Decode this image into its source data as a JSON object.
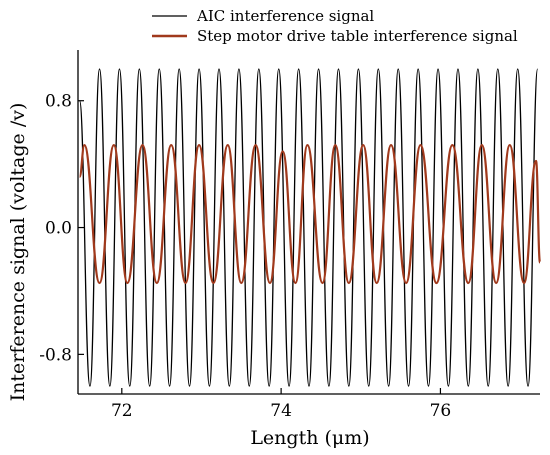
{
  "chart_data": {
    "type": "line",
    "xlabel": "Length  (μm)",
    "ylabel": "Interference signal  (voltage /v)",
    "xlim": [
      71.45,
      77.25
    ],
    "ylim": [
      -1.05,
      1.12
    ],
    "x_ticks": [
      72,
      74,
      76
    ],
    "x_tick_labels": [
      "72",
      "74",
      "76"
    ],
    "y_ticks": [
      0.8,
      0.0,
      -0.8
    ],
    "y_tick_labels": [
      "0.8",
      "0.0",
      "-0.8"
    ],
    "grid": false,
    "legend_position": "top",
    "series": [
      {
        "name": "AIC interference signal",
        "color": "#000000",
        "x": [
          71.47,
          71.6,
          71.72,
          71.85,
          71.97,
          72.1,
          72.22,
          72.35,
          72.47,
          72.6,
          72.72,
          72.85,
          72.97,
          73.1,
          73.22,
          73.35,
          73.47,
          73.6,
          73.72,
          73.85,
          73.97,
          74.1,
          74.22,
          74.35,
          74.47,
          74.6,
          74.72,
          74.85,
          74.97,
          75.1,
          75.22,
          75.35,
          75.47,
          75.6,
          75.72,
          75.85,
          75.97,
          76.1,
          76.22,
          76.35,
          76.47,
          76.6,
          76.72,
          76.85,
          76.97,
          77.1,
          77.22
        ],
        "values": [
          0.8,
          -1.0,
          1.0,
          -1.0,
          1.0,
          -1.0,
          1.0,
          -1.0,
          1.0,
          -1.0,
          1.0,
          -1.0,
          1.0,
          -1.0,
          1.0,
          -1.0,
          1.0,
          -1.0,
          1.0,
          -1.0,
          1.0,
          -1.0,
          1.0,
          -1.0,
          1.0,
          -1.0,
          1.0,
          -1.0,
          1.0,
          -1.0,
          1.0,
          -1.0,
          1.0,
          -1.0,
          1.0,
          -1.0,
          1.0,
          -1.0,
          1.0,
          -1.0,
          1.0,
          -1.0,
          1.0,
          -1.0,
          1.0,
          -1.0,
          1.0
        ]
      },
      {
        "name": "Step motor drive table interference signal",
        "color": "#a0391c",
        "x": [
          71.47,
          71.53,
          71.72,
          71.9,
          72.07,
          72.26,
          72.44,
          72.62,
          72.8,
          72.97,
          73.15,
          73.33,
          73.5,
          73.68,
          73.86,
          74.02,
          74.18,
          74.33,
          74.52,
          74.68,
          74.85,
          75.03,
          75.2,
          75.38,
          75.57,
          75.75,
          75.95,
          76.15,
          76.35,
          76.52,
          76.7,
          76.87,
          77.05,
          77.2,
          77.25
        ],
        "values": [
          0.32,
          0.52,
          -0.35,
          0.52,
          -0.35,
          0.52,
          -0.35,
          0.52,
          -0.35,
          0.52,
          -0.35,
          0.52,
          -0.35,
          0.52,
          -0.35,
          0.48,
          -0.35,
          0.52,
          -0.35,
          0.52,
          -0.35,
          0.52,
          -0.35,
          0.52,
          -0.35,
          0.52,
          -0.35,
          0.52,
          -0.35,
          0.52,
          -0.35,
          0.52,
          -0.35,
          0.42,
          -0.22
        ]
      }
    ]
  }
}
